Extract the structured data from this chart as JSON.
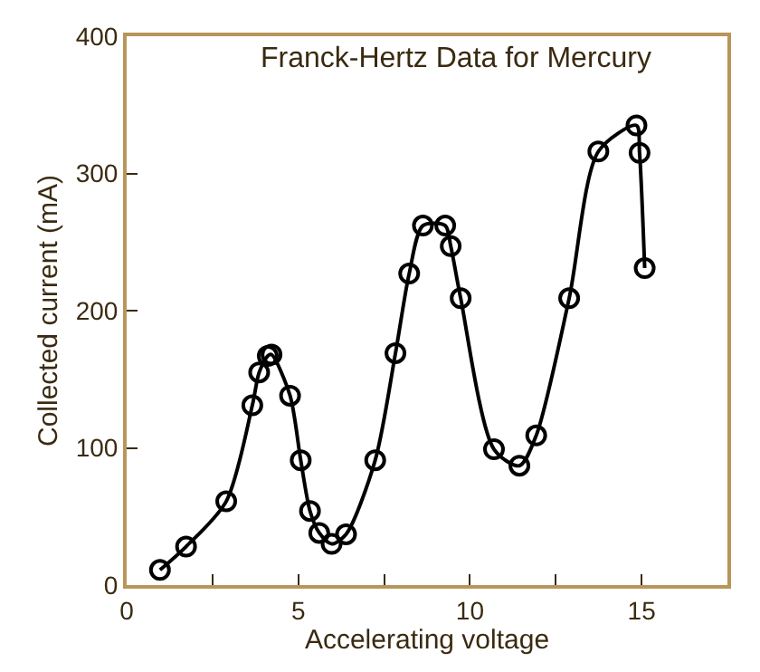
{
  "chart_data": {
    "type": "line",
    "title": "Franck-Hertz Data for Mercury",
    "xlabel": "Accelerating voltage",
    "ylabel": "Collected current (mA)",
    "x": [
      0.97,
      1.73,
      2.9,
      3.66,
      3.86,
      4.11,
      4.22,
      4.76,
      5.07,
      5.34,
      5.61,
      5.97,
      6.39,
      7.24,
      7.83,
      8.23,
      8.63,
      9.28,
      9.44,
      9.73,
      10.7,
      11.44,
      11.93,
      12.89,
      13.74,
      14.85,
      14.94,
      15.09
    ],
    "series": [
      {
        "color": "#000000",
        "values": [
          11,
          28,
          61,
          131,
          155,
          167,
          168,
          138,
          91,
          54,
          38,
          30,
          37,
          91,
          169,
          227,
          262,
          262,
          247,
          209,
          99,
          87,
          109,
          209,
          316,
          335,
          315,
          231
        ]
      }
    ],
    "xlim": [
      0,
      17.5
    ],
    "ylim": [
      0,
      400
    ],
    "xticks": [
      0,
      {
        "value": 2.5,
        "label": null
      },
      5,
      {
        "value": 7.5,
        "label": null
      },
      10,
      {
        "value": 12.5,
        "label": null
      },
      15
    ],
    "yticks": [
      0,
      100,
      200,
      300,
      400
    ],
    "marker": "circle",
    "line_style": "solid"
  }
}
